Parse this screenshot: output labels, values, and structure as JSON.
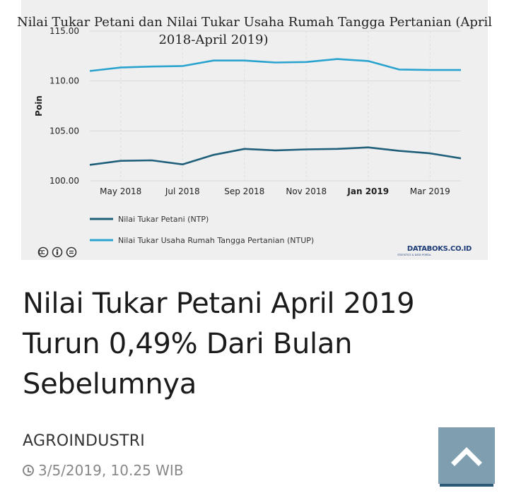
{
  "chart_data": {
    "type": "line",
    "title": "Nilai Tukar Petani dan Nilai Tukar Usaha Rumah Tangga Pertanian (April 2018-April 2019)",
    "title_lines": [
      "Nilai Tukar Petani dan Nilai Tukar Usaha Rumah Tangga Pertanian (April",
      "2018-April 2019)"
    ],
    "xlabel": "",
    "ylabel": "Poin",
    "ylim": [
      100,
      115
    ],
    "yticks": [
      "100.00",
      "105.00",
      "110.00",
      "115.00"
    ],
    "x": [
      "Apr 2018",
      "May 2018",
      "Jun 2018",
      "Jul 2018",
      "Aug 2018",
      "Sep 2018",
      "Oct 2018",
      "Nov 2018",
      "Dec 2018",
      "Jan 2019",
      "Feb 2019",
      "Mar 2019",
      "Apr 2019"
    ],
    "xtick_labels": [
      {
        "index": 1,
        "label": "May 2018",
        "bold": false
      },
      {
        "index": 3,
        "label": "Jul 2018",
        "bold": false
      },
      {
        "index": 5,
        "label": "Sep 2018",
        "bold": false
      },
      {
        "index": 7,
        "label": "Nov 2018",
        "bold": false
      },
      {
        "index": 9,
        "label": "Jan 2019",
        "bold": true
      },
      {
        "index": 11,
        "label": "Mar 2019",
        "bold": false
      }
    ],
    "series": [
      {
        "name": "Nilai Tukar Petani (NTP)",
        "color": "#1f5f7a",
        "values": [
          101.6,
          102.0,
          102.05,
          101.65,
          102.6,
          103.2,
          103.05,
          103.15,
          103.2,
          103.35,
          103.0,
          102.75,
          102.25
        ]
      },
      {
        "name": "Nilai Tukar Usaha Rumah Tangga Pertanian (NTUP)",
        "color": "#2ba3cf",
        "values": [
          111.0,
          111.35,
          111.45,
          111.5,
          112.05,
          112.05,
          111.85,
          111.9,
          112.2,
          112.0,
          111.15,
          111.1,
          111.1
        ]
      }
    ],
    "legend_position": "bottom-left",
    "grid": true,
    "source": "DATABOKS.CO.ID",
    "source_sub": "STATISTICS & DATA PORTAL"
  },
  "article": {
    "headline_lines": [
      "Nilai Tukar Petani April 2019",
      "Turun 0,49% Dari Bulan",
      "Sebelumnya"
    ],
    "category": "AGROINDUSTRI",
    "date": "3/5/2019, 10.25 WIB"
  },
  "icons": {
    "license": [
      "cc-icon",
      "by-icon",
      "nd-icon"
    ],
    "scroll": "chevron-up-icon",
    "time": "clock-icon"
  }
}
